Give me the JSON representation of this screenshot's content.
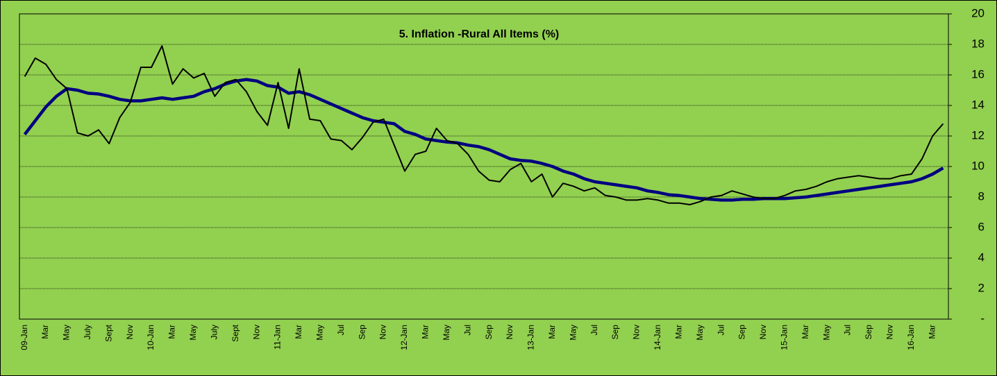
{
  "chart_data": {
    "type": "line",
    "title": "5. Inflation -Rural All Items (%)",
    "categories": [
      "09-Jan",
      null,
      "Mar",
      null,
      "May",
      null,
      "July",
      null,
      "Sept",
      null,
      "Nov",
      null,
      "10-Jan",
      null,
      "Mar",
      null,
      "May",
      null,
      "July",
      null,
      "Sept",
      null,
      "Nov",
      null,
      "11-Jan",
      null,
      "Mar",
      null,
      "May",
      null,
      "Jul",
      null,
      "Sep",
      null,
      "Nov",
      null,
      "12-Jan",
      null,
      "Mar",
      null,
      "May",
      null,
      "Jul",
      null,
      "Sep",
      null,
      "Nov",
      null,
      "13-Jan",
      null,
      "Mar",
      null,
      "May",
      null,
      "Jul",
      null,
      "Sep",
      null,
      "Nov",
      null,
      "14-Jan",
      null,
      "Mar",
      null,
      "May",
      null,
      "Jul",
      null,
      "Sep",
      null,
      "Nov",
      null,
      "15-Jan",
      null,
      "Mar",
      null,
      "May",
      null,
      "Jul",
      null,
      "Sep",
      null,
      "Nov",
      null,
      "16-Jan",
      null,
      "Mar",
      null
    ],
    "series": [
      {
        "color": "#000000",
        "values": [
          15.9,
          17.1,
          16.7,
          15.7,
          15.1,
          12.2,
          12.0,
          12.4,
          11.5,
          13.2,
          14.2,
          16.5,
          16.5,
          17.9,
          15.4,
          16.4,
          15.8,
          16.1,
          14.6,
          15.5,
          15.7,
          14.9,
          13.6,
          12.7,
          15.5,
          12.5,
          16.4,
          13.1,
          13.0,
          11.8,
          11.7,
          11.1,
          11.9,
          12.9,
          13.1,
          11.4,
          9.7,
          10.8,
          11.0,
          12.5,
          11.7,
          11.5,
          10.8,
          9.7,
          9.1,
          9.0,
          9.8,
          10.2,
          9.0,
          9.5,
          8.0,
          8.9,
          8.7,
          8.4,
          8.6,
          8.1,
          8.0,
          7.8,
          7.8,
          7.9,
          7.8,
          7.6,
          7.6,
          7.5,
          7.7,
          8.0,
          8.1,
          8.4,
          8.2,
          8.0,
          7.9,
          7.9,
          8.1,
          8.4,
          8.5,
          8.7,
          9.0,
          9.2,
          9.3,
          9.4,
          9.3,
          9.2,
          9.2,
          9.4,
          9.5,
          10.5,
          12.0,
          12.8
        ]
      },
      {
        "color": "#000080",
        "values": [
          12.1,
          13.0,
          13.9,
          14.6,
          15.1,
          15.0,
          14.8,
          14.75,
          14.6,
          14.4,
          14.3,
          14.3,
          14.4,
          14.5,
          14.4,
          14.5,
          14.6,
          14.9,
          15.1,
          15.4,
          15.6,
          15.7,
          15.6,
          15.3,
          15.2,
          14.8,
          14.9,
          14.7,
          14.4,
          14.1,
          13.8,
          13.5,
          13.2,
          13.0,
          12.9,
          12.8,
          12.3,
          12.1,
          11.8,
          11.7,
          11.6,
          11.55,
          11.4,
          11.3,
          11.1,
          10.8,
          10.5,
          10.4,
          10.35,
          10.2,
          10.0,
          9.7,
          9.5,
          9.2,
          9.0,
          8.9,
          8.8,
          8.7,
          8.6,
          8.4,
          8.3,
          8.15,
          8.1,
          8.0,
          7.9,
          7.85,
          7.8,
          7.8,
          7.85,
          7.85,
          7.9,
          7.9,
          7.9,
          7.95,
          8.0,
          8.1,
          8.2,
          8.3,
          8.4,
          8.5,
          8.6,
          8.7,
          8.8,
          8.9,
          9.0,
          9.2,
          9.5,
          9.9
        ]
      }
    ],
    "ylim": [
      0,
      20
    ],
    "yticks": [
      {
        "value": 0,
        "label": "-"
      },
      2,
      4,
      6,
      8,
      10,
      12,
      14,
      16,
      18,
      20
    ],
    "grid": true
  }
}
